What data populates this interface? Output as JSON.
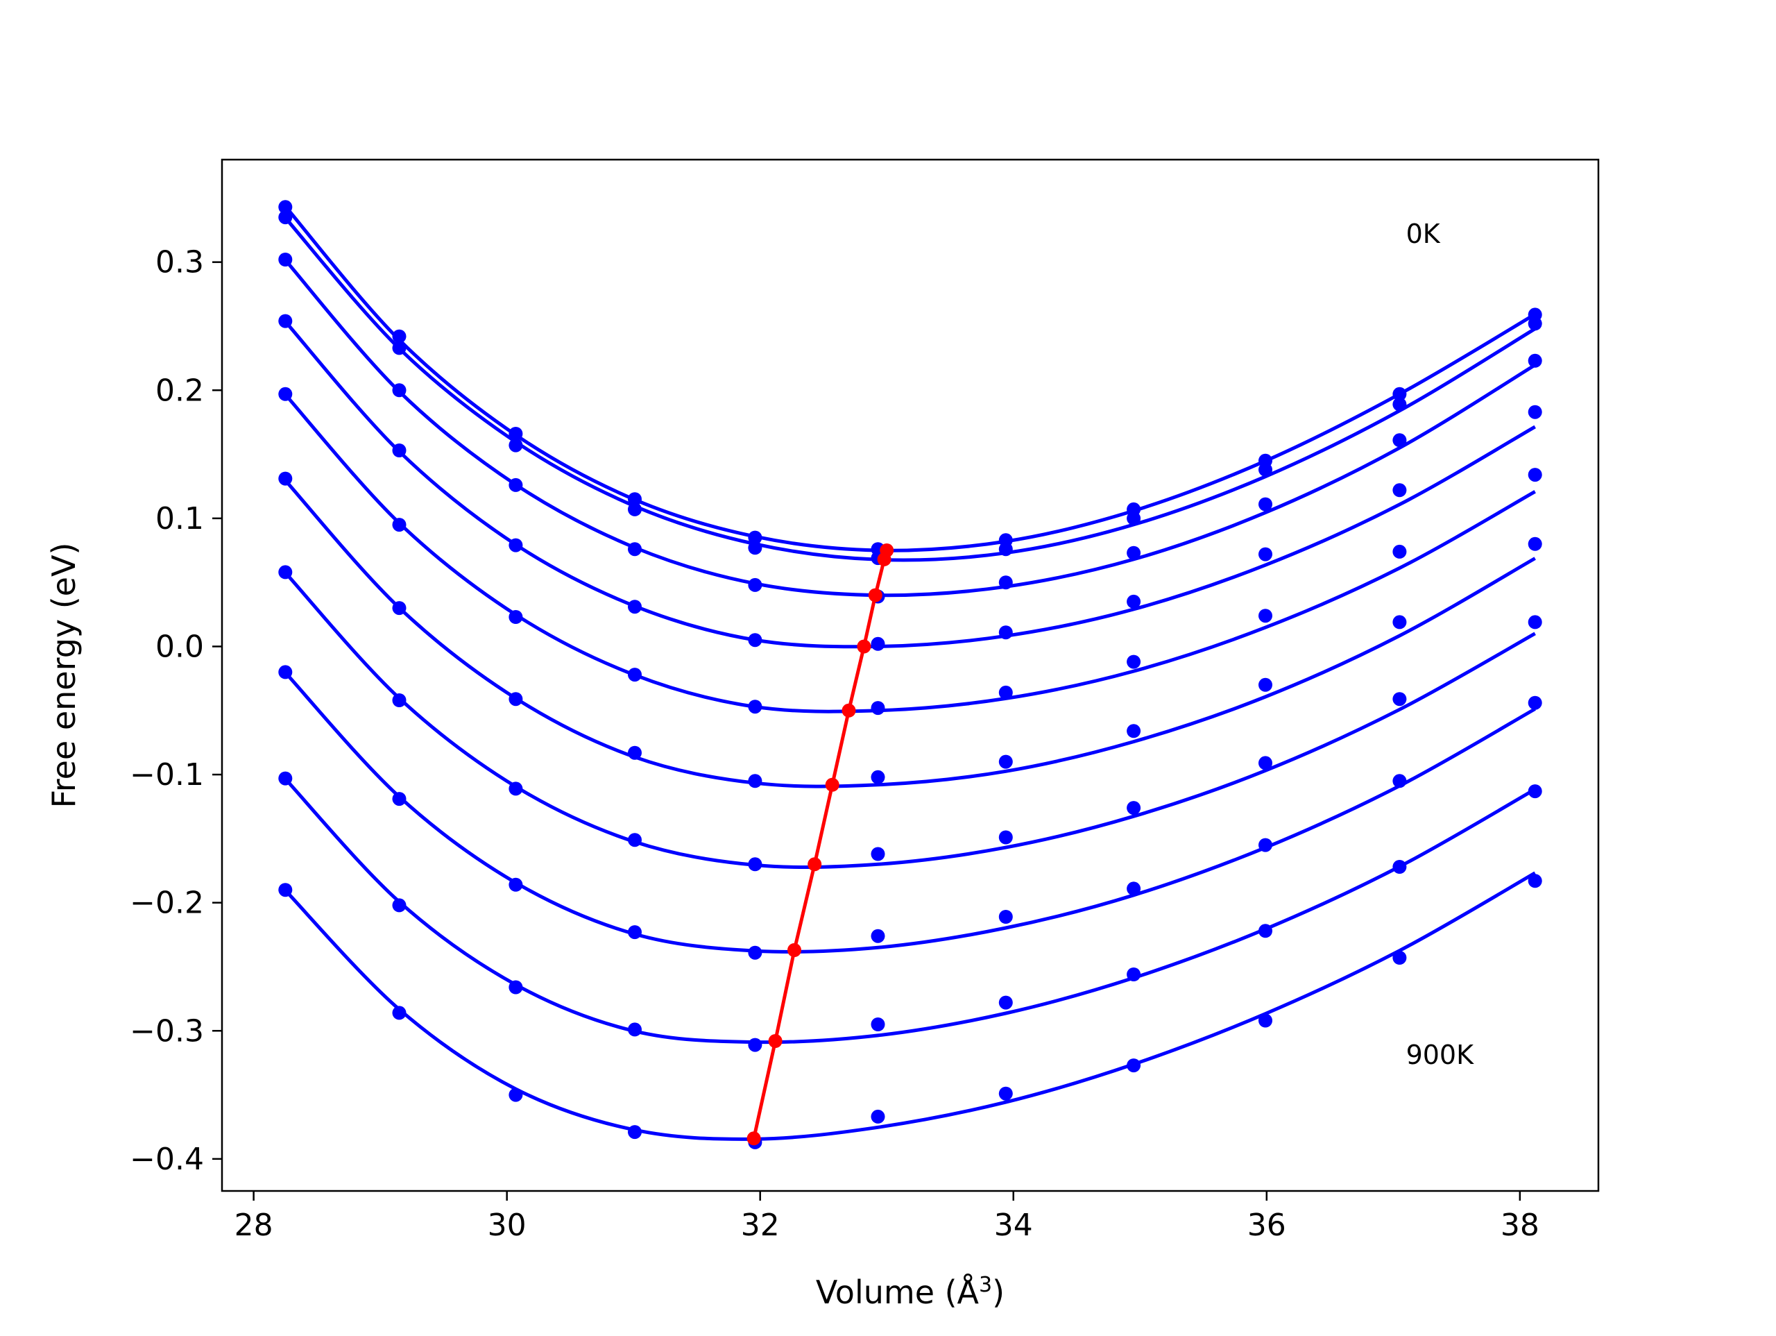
{
  "chart_data": {
    "type": "line",
    "title": "",
    "xlabel": "Volume (Å",
    "xlabel_sup": "3",
    "xlabel_close": ")",
    "ylabel": "Free energy (eV)",
    "xlim": [
      27.75,
      38.62
    ],
    "ylim": [
      -0.425,
      0.38
    ],
    "xticks": [
      28,
      30,
      32,
      34,
      36,
      38
    ],
    "xtick_labels": [
      "28",
      "30",
      "32",
      "34",
      "36",
      "38"
    ],
    "yticks": [
      -0.4,
      -0.3,
      -0.2,
      -0.1,
      0.0,
      0.1,
      0.2,
      0.3
    ],
    "ytick_labels": [
      "−0.4",
      "−0.3",
      "−0.2",
      "−0.1",
      "0.0",
      "0.1",
      "0.2",
      "0.3"
    ],
    "grid": false,
    "annotations": [
      {
        "text": "0K",
        "x": 37.1,
        "y": 0.315
      },
      {
        "text": "900K",
        "x": 37.1,
        "y": -0.326
      }
    ],
    "colors": {
      "curves": "#0000ff",
      "minimum_line": "#ff0000",
      "axes": "#000000"
    },
    "x": [
      28.25,
      29.15,
      30.07,
      31.01,
      31.96,
      32.93,
      33.94,
      34.95,
      35.99,
      37.05,
      38.12
    ],
    "series": [
      {
        "points": [
          0.343,
          0.242,
          0.166,
          0.115,
          0.085,
          0.076,
          0.083,
          0.107,
          0.145,
          0.197,
          0.259
        ],
        "fit": [
          0.3436,
          0.2393,
          0.1651,
          0.1146,
          0.0858,
          0.075,
          0.082,
          0.1059,
          0.1448,
          0.197,
          0.2593
        ]
      },
      {
        "points": [
          0.335,
          0.233,
          0.157,
          0.107,
          0.077,
          0.069,
          0.076,
          0.1,
          0.138,
          0.189,
          0.252
        ],
        "fit": [
          0.3346,
          0.2326,
          0.1597,
          0.1095,
          0.08,
          0.0678,
          0.073,
          0.0951,
          0.1326,
          0.184,
          0.248
        ]
      },
      {
        "points": [
          0.302,
          0.2,
          0.126,
          0.076,
          0.048,
          0.039,
          0.05,
          0.073,
          0.111,
          0.161,
          0.223
        ],
        "fit": [
          0.3016,
          0.199,
          0.1263,
          0.0772,
          0.0491,
          0.04,
          0.0467,
          0.068,
          0.1045,
          0.155,
          0.2197
        ]
      },
      {
        "points": [
          0.254,
          0.153,
          0.079,
          0.031,
          0.005,
          0.002,
          0.011,
          0.035,
          0.072,
          0.122,
          0.183
        ],
        "fit": [
          0.2536,
          0.1522,
          0.0795,
          0.0315,
          0.0051,
          0.0,
          0.0082,
          0.029,
          0.0635,
          0.1108,
          0.1715
        ]
      },
      {
        "points": [
          0.197,
          0.095,
          0.023,
          -0.022,
          -0.047,
          -0.048,
          -0.036,
          -0.012,
          0.024,
          0.074,
          0.134
        ],
        "fit": [
          0.1966,
          0.0963,
          0.0248,
          -0.0223,
          -0.0471,
          -0.05,
          -0.0406,
          -0.0193,
          0.0148,
          0.0612,
          0.1209
        ]
      },
      {
        "points": [
          0.131,
          0.03,
          -0.041,
          -0.083,
          -0.105,
          -0.102,
          -0.09,
          -0.066,
          -0.03,
          0.019,
          0.08
        ],
        "fit": [
          0.1296,
          0.0302,
          -0.0405,
          -0.0863,
          -0.1066,
          -0.108,
          -0.0974,
          -0.0743,
          -0.0393,
          0.0084,
          0.0688
        ]
      },
      {
        "points": [
          0.058,
          -0.042,
          -0.111,
          -0.151,
          -0.17,
          -0.162,
          -0.149,
          -0.126,
          -0.091,
          -0.041,
          0.019
        ],
        "fit": [
          0.0576,
          -0.0404,
          -0.1094,
          -0.1525,
          -0.1706,
          -0.17,
          -0.1569,
          -0.1326,
          -0.0969,
          -0.0492,
          0.0101
        ]
      },
      {
        "points": [
          -0.02,
          -0.119,
          -0.186,
          -0.223,
          -0.239,
          -0.226,
          -0.211,
          -0.189,
          -0.155,
          -0.105,
          -0.044
        ],
        "fit": [
          -0.0204,
          -0.1173,
          -0.1844,
          -0.2245,
          -0.2376,
          -0.235,
          -0.2197,
          -0.1941,
          -0.157,
          -0.1088,
          -0.0488
        ]
      },
      {
        "points": [
          -0.103,
          -0.202,
          -0.266,
          -0.299,
          -0.311,
          -0.295,
          -0.278,
          -0.256,
          -0.222,
          -0.172,
          -0.113
        ],
        "fit": [
          -0.1034,
          -0.1993,
          -0.264,
          -0.3003,
          -0.3088,
          -0.3036,
          -0.2863,
          -0.2587,
          -0.2206,
          -0.1718,
          -0.1115
        ]
      },
      {
        "points": [
          -0.19,
          -0.286,
          -0.35,
          -0.379,
          -0.387,
          -0.367,
          -0.349,
          -0.327,
          -0.292,
          -0.243,
          -0.183
        ],
        "fit": [
          -0.1904,
          -0.2833,
          -0.3454,
          -0.3774,
          -0.3845,
          -0.3753,
          -0.3557,
          -0.3261,
          -0.2867,
          -0.2374,
          -0.1768
        ]
      }
    ],
    "minimum_line": {
      "x": [
        33.0,
        32.98,
        32.91,
        32.82,
        32.7,
        32.57,
        32.43,
        32.27,
        32.12,
        31.95
      ],
      "y": [
        0.075,
        0.068,
        0.04,
        0.0,
        -0.05,
        -0.108,
        -0.17,
        -0.237,
        -0.308,
        -0.384
      ]
    }
  }
}
